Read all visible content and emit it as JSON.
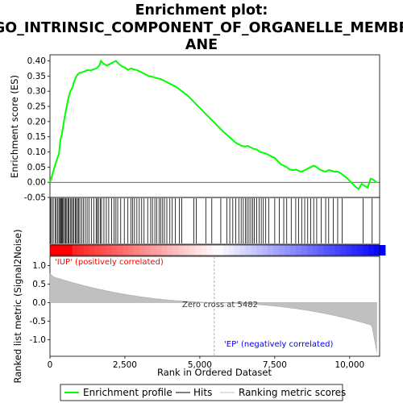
{
  "chart_data": {
    "type": "line",
    "title": "Enrichment plot: GO_INTRINSIC_COMPONENT_OF_ORGANELLE_MEMBRANE",
    "title_lines": [
      "Enrichment plot:",
      "GO_INTRINSIC_COMPONENT_OF_ORGANELLE_MEMBR",
      "ANE"
    ],
    "top_panel": {
      "ylabel": "Enrichment score (ES)",
      "ylim": [
        -0.05,
        0.42
      ],
      "yticks": [
        "-0.05",
        "0.00",
        "0.05",
        "0.10",
        "0.15",
        "0.20",
        "0.25",
        "0.30",
        "0.35",
        "0.40"
      ],
      "ytick_values": [
        -0.05,
        0.0,
        0.05,
        0.1,
        0.15,
        0.2,
        0.25,
        0.3,
        0.35,
        0.4
      ],
      "series": [
        {
          "name": "Enrichment profile",
          "color": "#00ff00",
          "x": [
            0,
            80,
            150,
            230,
            300,
            350,
            400,
            450,
            500,
            560,
            620,
            680,
            740,
            800,
            860,
            920,
            980,
            1050,
            1150,
            1250,
            1350,
            1450,
            1550,
            1650,
            1700,
            1800,
            1900,
            2000,
            2100,
            2200,
            2300,
            2400,
            2500,
            2600,
            2700,
            2800,
            2900,
            3000,
            3100,
            3200,
            3300,
            3400,
            3500,
            3600,
            3700,
            3800,
            3900,
            4000,
            4100,
            4200,
            4400,
            4600,
            4800,
            5000,
            5200,
            5400,
            5600,
            5800,
            6000,
            6200,
            6400,
            6500,
            6600,
            6700,
            6800,
            6900,
            7000,
            7200,
            7400,
            7500,
            7600,
            7700,
            7800,
            7900,
            8000,
            8100,
            8200,
            8300,
            8400,
            8500,
            8600,
            8700,
            8800,
            8900,
            9000,
            9100,
            9200,
            9300,
            9400,
            9500,
            9600,
            9700,
            9800,
            9900,
            10000,
            10100,
            10200,
            10300,
            10400,
            10500,
            10600,
            10700,
            10800,
            10900
          ],
          "y": [
            0.0,
            0.025,
            0.05,
            0.075,
            0.095,
            0.14,
            0.16,
            0.19,
            0.22,
            0.25,
            0.28,
            0.3,
            0.31,
            0.33,
            0.345,
            0.355,
            0.36,
            0.362,
            0.365,
            0.37,
            0.368,
            0.372,
            0.375,
            0.385,
            0.4,
            0.39,
            0.385,
            0.39,
            0.395,
            0.4,
            0.39,
            0.382,
            0.378,
            0.37,
            0.375,
            0.372,
            0.37,
            0.365,
            0.36,
            0.355,
            0.35,
            0.348,
            0.345,
            0.342,
            0.34,
            0.335,
            0.33,
            0.325,
            0.32,
            0.315,
            0.3,
            0.285,
            0.265,
            0.245,
            0.225,
            0.205,
            0.185,
            0.165,
            0.148,
            0.13,
            0.12,
            0.118,
            0.12,
            0.115,
            0.11,
            0.108,
            0.1,
            0.095,
            0.085,
            0.08,
            0.07,
            0.06,
            0.055,
            0.05,
            0.042,
            0.04,
            0.042,
            0.038,
            0.035,
            0.04,
            0.045,
            0.05,
            0.055,
            0.05,
            0.042,
            0.038,
            0.035,
            0.04,
            0.038,
            0.035,
            0.035,
            0.03,
            0.022,
            0.015,
            0.005,
            -0.005,
            -0.015,
            -0.022,
            -0.005,
            -0.012,
            -0.018,
            0.012,
            0.008,
            0.0
          ]
        }
      ]
    },
    "hits_x": [
      20,
      60,
      110,
      170,
      210,
      260,
      300,
      330,
      360,
      390,
      420,
      450,
      490,
      520,
      560,
      600,
      630,
      680,
      720,
      760,
      800,
      850,
      880,
      920,
      960,
      1000,
      1060,
      1120,
      1180,
      1240,
      1300,
      1380,
      1460,
      1540,
      1580,
      1620,
      1680,
      1720,
      1800,
      1880,
      1960,
      2060,
      2140,
      2200,
      2260,
      2360,
      2480,
      2600,
      2700,
      2760,
      2820,
      2900,
      2980,
      3060,
      3140,
      3260,
      3360,
      3420,
      3500,
      3560,
      3640,
      3700,
      3760,
      3820,
      3900,
      4000,
      4080,
      4180,
      4320,
      4400,
      4800,
      4880,
      5200,
      5400,
      5700,
      5900,
      6000,
      6100,
      6200,
      6300,
      6380,
      6450,
      6520,
      6580,
      6640,
      6700,
      6760,
      6820,
      6900,
      6980,
      7050,
      7120,
      7200,
      7300,
      7500,
      7650,
      7800,
      7900,
      8050,
      8200,
      8300,
      8400,
      8500,
      8600,
      8700,
      8800,
      8900,
      9050,
      9200,
      9300,
      9450,
      9600,
      9750,
      10450,
      10750
    ],
    "middle_panel": {
      "ylabel": "Ranked list metric (Signal2Noise)",
      "ylim": [
        -1.45,
        1.25
      ],
      "yticks": [
        "1.0",
        "0.5",
        "0.0",
        "-0.5",
        "-1.0"
      ],
      "ytick_values": [
        1.0,
        0.5,
        0.0,
        -0.5,
        -1.0
      ],
      "zero_cross_label": "Zero cross at 5482",
      "zero_cross": 5482,
      "pos_label": "'IUP' (positively correlated)",
      "neg_label": "'EP' (negatively correlated)",
      "metric_start": 1.1,
      "metric_end": -1.35
    },
    "xlabel": "Rank in Ordered Dataset",
    "xlim": [
      0,
      11000
    ],
    "xtick_values": [
      0,
      2500,
      5000,
      7500,
      10000
    ],
    "xticks": [
      "0",
      "2,500",
      "5,000",
      "7,500",
      "10,000"
    ],
    "n_genes": 10900,
    "legend": {
      "position": "bottom",
      "items": [
        {
          "label": "Enrichment profile",
          "color": "#00ff00"
        },
        {
          "label": "Hits",
          "color": "#000000"
        },
        {
          "label": "Ranking metric scores",
          "color": "#c0c0c0"
        }
      ]
    },
    "colors": {
      "profile": "#00ff00",
      "hit": "#000000",
      "metric_fill": "#c0c0c0",
      "pos_text": "#ff0000",
      "neg_text": "#0000ff",
      "zero_line": "#999999"
    }
  }
}
